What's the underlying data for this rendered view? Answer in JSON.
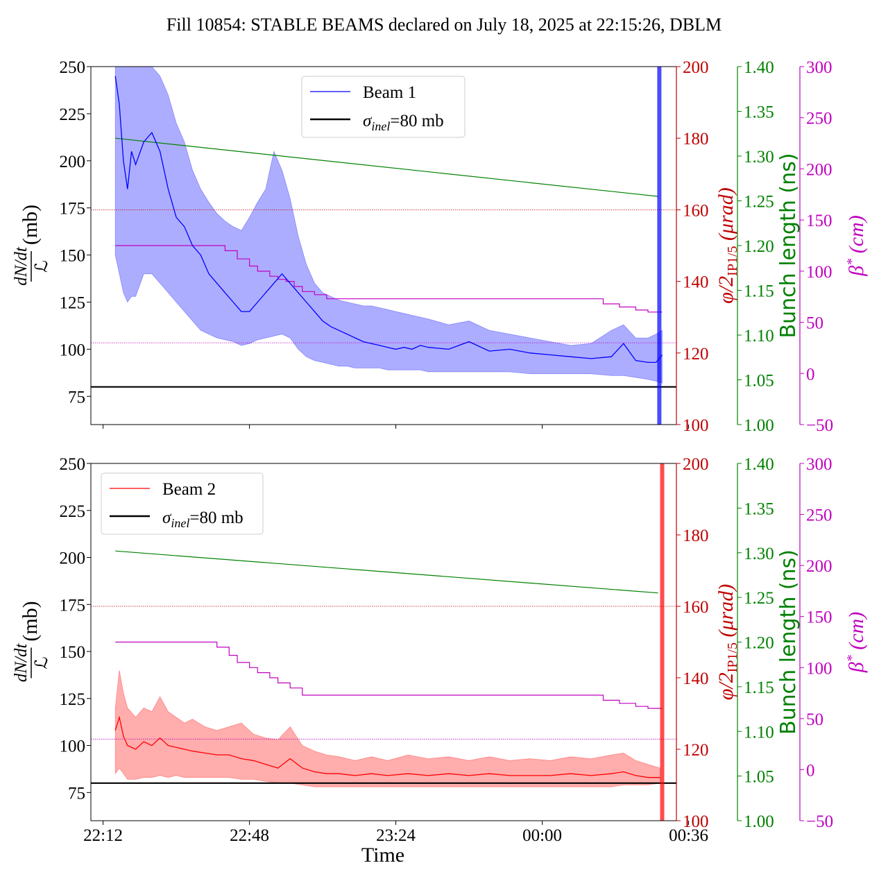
{
  "title": "Fill 10854: STABLE BEAMS declared on July 18, 2025 at 22:15:26, DBLM",
  "colors": {
    "beam1": "#0000ff",
    "beam2": "#ff0000",
    "phi": "#c00000",
    "bunch": "#008000",
    "beta": "#c000c0",
    "sigma": "#000000"
  },
  "x_axis": {
    "label": "Time",
    "ticks": [
      "22:12",
      "22:48",
      "23:24",
      "00:00",
      "00:36"
    ]
  },
  "y_axes": {
    "left_label_num": "dN/dt",
    "left_label_den": "ℒ",
    "left_label_unit": "(mb)",
    "left_ticks": [
      "75",
      "100",
      "125",
      "150",
      "175",
      "200",
      "225",
      "250"
    ],
    "phi_label": "φ/2",
    "phi_label_sub": "IP1/5",
    "phi_label_unit": "(μrad)",
    "phi_ticks": [
      "100",
      "120",
      "140",
      "160",
      "180",
      "200"
    ],
    "bunch_label": "Bunch length (ns)",
    "bunch_ticks": [
      "1.00",
      "1.05",
      "1.10",
      "1.15",
      "1.20",
      "1.25",
      "1.30",
      "1.35",
      "1.40"
    ],
    "beta_label": "β",
    "beta_label_sup": "*",
    "beta_label_unit": "(cm)",
    "beta_ticks": [
      "−50",
      "0",
      "50",
      "100",
      "150",
      "200",
      "250",
      "300"
    ]
  },
  "legends": {
    "top": {
      "beam": "Beam 1",
      "sigma_prefix": "σ",
      "sigma_sub": "inel",
      "sigma_suffix": "=80 mb"
    },
    "bottom": {
      "beam": "Beam 2",
      "sigma_prefix": "σ",
      "sigma_sub": "inel",
      "sigma_suffix": "=80 mb"
    }
  },
  "chart_data": [
    {
      "type": "line",
      "panel": "top",
      "x_unit": "minutes since 22:12",
      "xlim": [
        -3,
        141
      ],
      "ylim": [
        60,
        250
      ],
      "phi_ylim": [
        100,
        200
      ],
      "bunch_ylim": [
        1.0,
        1.4
      ],
      "beta_ylim": [
        -50,
        300
      ],
      "sigma_inel_mb": 80,
      "series": [
        {
          "name": "Beam 1",
          "x": [
            3,
            4,
            5,
            6,
            7,
            8,
            10,
            12,
            14,
            16,
            18,
            20,
            22,
            24,
            26,
            28,
            30,
            32,
            34,
            36,
            38,
            40,
            42,
            44,
            46,
            48,
            50,
            52,
            54,
            56,
            58,
            60,
            62,
            64,
            66,
            68,
            70,
            72,
            74,
            76,
            78,
            80,
            85,
            90,
            95,
            100,
            105,
            110,
            115,
            120,
            125,
            128,
            131,
            134,
            136,
            137.5
          ],
          "y": [
            245,
            230,
            200,
            185,
            205,
            198,
            210,
            215,
            205,
            185,
            170,
            165,
            155,
            150,
            140,
            135,
            130,
            125,
            120,
            120,
            125,
            130,
            135,
            140,
            135,
            130,
            125,
            120,
            115,
            112,
            110,
            108,
            106,
            104,
            103,
            102,
            101,
            100,
            101,
            100,
            102,
            101,
            100,
            104,
            99,
            100,
            98,
            97,
            96,
            95,
            96,
            103,
            94,
            93,
            93,
            97
          ],
          "band_upper": [
            250,
            250,
            250,
            250,
            250,
            250,
            250,
            250,
            245,
            235,
            220,
            210,
            195,
            185,
            178,
            172,
            168,
            165,
            163,
            170,
            178,
            185,
            205,
            195,
            180,
            160,
            145,
            135,
            130,
            128,
            126,
            125,
            124,
            123,
            123,
            122,
            121,
            120,
            119,
            118,
            117,
            116,
            113,
            115,
            110,
            108,
            106,
            104,
            102,
            103,
            110,
            113,
            106,
            106,
            108,
            110
          ],
          "band_lower": [
            150,
            140,
            130,
            125,
            128,
            128,
            140,
            140,
            135,
            130,
            125,
            120,
            115,
            110,
            108,
            106,
            105,
            104,
            102,
            103,
            105,
            106,
            107,
            108,
            106,
            100,
            96,
            94,
            93,
            92,
            91,
            91,
            90,
            90,
            90,
            90,
            89,
            89,
            89,
            89,
            89,
            88,
            88,
            88,
            88,
            88,
            87,
            87,
            87,
            87,
            86,
            86,
            85,
            84,
            83,
            82
          ]
        },
        {
          "name": "σinel=80 mb",
          "x": [
            -3,
            141
          ],
          "y": [
            80,
            80
          ]
        },
        {
          "name": "",
          "axis": "bunch",
          "x": [
            3,
            136.5
          ],
          "y": [
            1.32,
            1.255
          ]
        },
        {
          "name": "",
          "axis": "beta",
          "x": [
            3,
            30,
            30,
            33,
            33,
            36,
            36,
            38,
            38,
            41,
            41,
            43,
            43,
            45,
            45,
            47,
            47,
            49,
            49,
            52,
            52,
            55,
            55,
            123,
            123,
            127,
            127,
            131,
            131,
            134,
            134,
            137.5
          ],
          "y": [
            125,
            125,
            120,
            120,
            112,
            112,
            105,
            105,
            100,
            100,
            95,
            95,
            92,
            92,
            90,
            90,
            85,
            85,
            80,
            80,
            77,
            77,
            73,
            73,
            68,
            68,
            65,
            65,
            62,
            62,
            60,
            60
          ]
        },
        {
          "name": "",
          "axis": "phi",
          "x": [
            -3,
            141
          ],
          "y": [
            160,
            160
          ]
        },
        {
          "name": "",
          "axis": "beta",
          "x": [
            -3,
            141
          ],
          "y": [
            30,
            30
          ]
        }
      ],
      "vertical_marker_x": 136.8
    },
    {
      "type": "line",
      "panel": "bottom",
      "x_unit": "minutes since 22:12",
      "xlim": [
        -3,
        141
      ],
      "ylim": [
        60,
        250
      ],
      "phi_ylim": [
        100,
        200
      ],
      "bunch_ylim": [
        1.0,
        1.4
      ],
      "beta_ylim": [
        -50,
        300
      ],
      "sigma_inel_mb": 80,
      "series": [
        {
          "name": "Beam 2",
          "x": [
            3,
            4,
            5,
            6,
            8,
            10,
            12,
            14,
            16,
            18,
            20,
            22,
            25,
            28,
            31,
            34,
            37,
            40,
            43,
            46,
            49,
            52,
            55,
            58,
            62,
            66,
            70,
            75,
            80,
            85,
            90,
            95,
            100,
            105,
            110,
            115,
            120,
            125,
            128,
            131,
            134,
            137
          ],
          "y": [
            108,
            115,
            105,
            100,
            98,
            102,
            100,
            104,
            100,
            99,
            98,
            97,
            96,
            95,
            95,
            93,
            92,
            90,
            88,
            93,
            88,
            86,
            85,
            85,
            84,
            85,
            84,
            85,
            84,
            85,
            84,
            85,
            84,
            84,
            84,
            85,
            84,
            85,
            86,
            84,
            83,
            83
          ],
          "band_upper": [
            120,
            140,
            128,
            120,
            115,
            120,
            118,
            126,
            118,
            115,
            112,
            114,
            110,
            108,
            110,
            112,
            106,
            104,
            103,
            110,
            100,
            97,
            95,
            94,
            92,
            94,
            92,
            95,
            93,
            94,
            92,
            94,
            92,
            93,
            92,
            94,
            93,
            95,
            96,
            92,
            90,
            88
          ],
          "band_lower": [
            85,
            88,
            85,
            82,
            82,
            83,
            83,
            84,
            83,
            84,
            83,
            83,
            83,
            83,
            83,
            82,
            82,
            81,
            80,
            80,
            79,
            78,
            78,
            78,
            78,
            78,
            78,
            78,
            78,
            78,
            78,
            78,
            78,
            78,
            78,
            78,
            78,
            78,
            79,
            79,
            79,
            80
          ]
        },
        {
          "name": "σinel=80 mb",
          "x": [
            -3,
            141
          ],
          "y": [
            80,
            80
          ]
        },
        {
          "name": "",
          "axis": "bunch",
          "x": [
            3,
            136.5
          ],
          "y": [
            1.302,
            1.255
          ]
        },
        {
          "name": "",
          "axis": "beta",
          "x": [
            3,
            28,
            28,
            31,
            31,
            33,
            33,
            36,
            36,
            38,
            38,
            41,
            41,
            43,
            43,
            46,
            46,
            49,
            49,
            55,
            55,
            123,
            123,
            127,
            127,
            131,
            131,
            134,
            134,
            137.5
          ],
          "y": [
            125,
            125,
            120,
            120,
            112,
            112,
            105,
            105,
            100,
            100,
            95,
            95,
            90,
            90,
            85,
            85,
            80,
            80,
            73,
            73,
            73,
            73,
            68,
            68,
            65,
            65,
            62,
            62,
            60,
            60
          ]
        },
        {
          "name": "",
          "axis": "phi",
          "x": [
            -3,
            141
          ],
          "y": [
            160,
            160
          ]
        },
        {
          "name": "",
          "axis": "beta",
          "x": [
            -3,
            141
          ],
          "y": [
            30,
            30
          ]
        }
      ],
      "vertical_marker_x": 137.5
    }
  ]
}
